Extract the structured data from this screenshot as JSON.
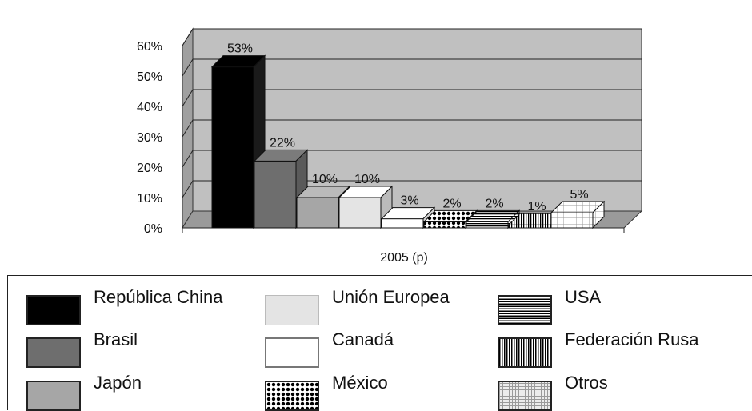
{
  "chart_data": {
    "type": "bar",
    "title": "",
    "xlabel": "2005 (p)",
    "ylabel": "",
    "ylim": [
      0,
      60
    ],
    "yticks": [
      "0%",
      "10%",
      "20%",
      "30%",
      "40%",
      "50%",
      "60%"
    ],
    "grid": true,
    "three_d": true,
    "legend_position": "bottom",
    "categories": [
      "República China",
      "Brasil",
      "Japón",
      "Unión Europea",
      "Canadá",
      "México",
      "USA",
      "Federación Rusa",
      "Otros"
    ],
    "values": [
      53,
      22,
      10,
      10,
      3,
      2,
      2,
      1,
      5
    ],
    "data_labels": [
      "53%",
      "22%",
      "10%",
      "10%",
      "3%",
      "2%",
      "2%",
      "1%",
      "5%"
    ],
    "series_styles": [
      {
        "fill": "#000000",
        "pattern": "solid"
      },
      {
        "fill": "#6e6e6e",
        "pattern": "solid"
      },
      {
        "fill": "#a6a6a6",
        "pattern": "solid"
      },
      {
        "fill": "#e4e4e4",
        "pattern": "solid"
      },
      {
        "fill": "#ffffff",
        "pattern": "solid"
      },
      {
        "fill": "#000000",
        "pattern": "dots"
      },
      {
        "fill": "#000000",
        "pattern": "horizontal-lines"
      },
      {
        "fill": "#000000",
        "pattern": "vertical-lines"
      },
      {
        "fill": "#d9d9d9",
        "pattern": "grid"
      }
    ],
    "plot_background": "#c0c0c0"
  }
}
